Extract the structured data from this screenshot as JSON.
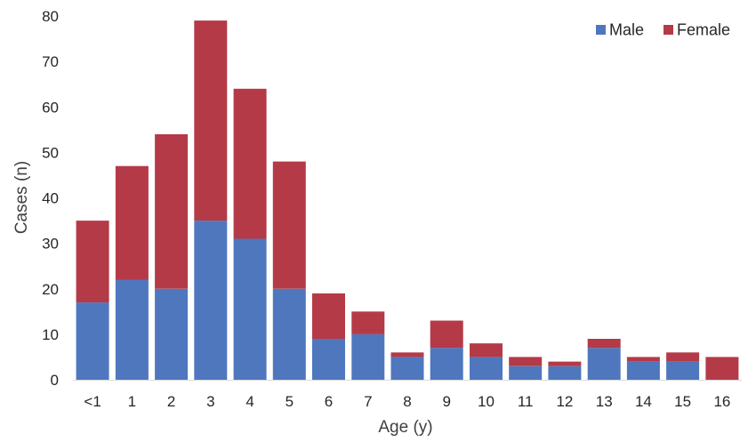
{
  "chart_data": {
    "type": "bar",
    "stacked": true,
    "title": "",
    "xlabel": "Age (y)",
    "ylabel": "Cases (n)",
    "ylim": [
      0,
      80
    ],
    "yticks": [
      0,
      10,
      20,
      30,
      40,
      50,
      60,
      70,
      80
    ],
    "grid": false,
    "legend_position": "top-right",
    "categories": [
      "<1",
      "1",
      "2",
      "3",
      "4",
      "5",
      "6",
      "7",
      "8",
      "9",
      "10",
      "11",
      "12",
      "13",
      "14",
      "15",
      "16"
    ],
    "series": [
      {
        "name": "Male",
        "color": "#4f77be",
        "values": [
          17,
          22,
          20,
          35,
          31,
          20,
          9,
          10,
          5,
          7,
          5,
          3,
          3,
          7,
          4,
          4,
          0
        ]
      },
      {
        "name": "Female",
        "color": "#b53a47",
        "values": [
          18,
          25,
          34,
          44,
          33,
          28,
          10,
          5,
          1,
          6,
          3,
          2,
          1,
          2,
          1,
          2,
          5
        ]
      }
    ]
  }
}
